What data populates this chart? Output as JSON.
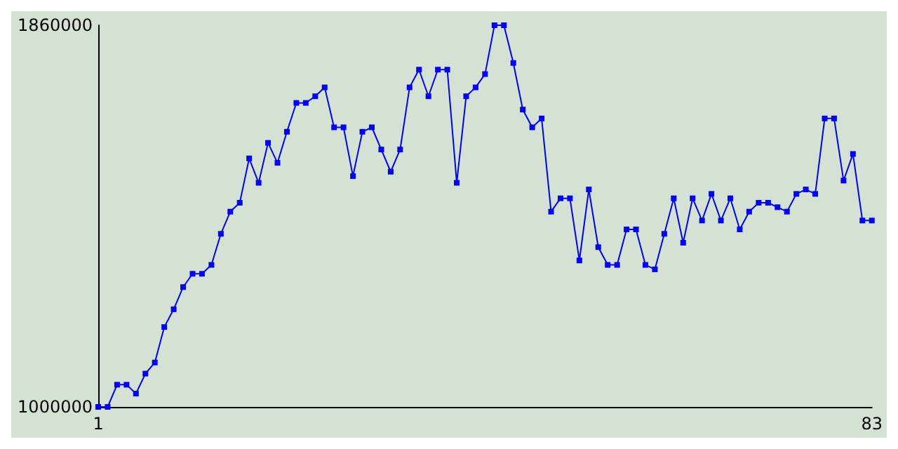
{
  "chart_data": {
    "type": "line",
    "x": [
      1,
      2,
      3,
      4,
      5,
      6,
      7,
      8,
      9,
      10,
      11,
      12,
      13,
      14,
      15,
      16,
      17,
      18,
      19,
      20,
      21,
      22,
      23,
      24,
      25,
      26,
      27,
      28,
      29,
      30,
      31,
      32,
      33,
      34,
      35,
      36,
      37,
      38,
      39,
      40,
      41,
      42,
      43,
      44,
      45,
      46,
      47,
      48,
      49,
      50,
      51,
      52,
      53,
      54,
      55,
      56,
      57,
      58,
      59,
      60,
      61,
      62,
      63,
      64,
      65,
      66,
      67,
      68,
      69,
      70,
      71,
      72,
      73,
      74,
      75,
      76,
      77,
      78,
      79,
      80,
      81,
      82,
      83
    ],
    "series": [
      {
        "color": "#0000ff",
        "values": [
          1000000,
          1000000,
          1050000,
          1050000,
          1030000,
          1075000,
          1100000,
          1180000,
          1220000,
          1270000,
          1300000,
          1300000,
          1320000,
          1390000,
          1440000,
          1460000,
          1560000,
          1505000,
          1595000,
          1550000,
          1620000,
          1685000,
          1685000,
          1700000,
          1720000,
          1630000,
          1630000,
          1520000,
          1620000,
          1630000,
          1580000,
          1530000,
          1580000,
          1720000,
          1760000,
          1700000,
          1760000,
          1760000,
          1505000,
          1700000,
          1720000,
          1750000,
          1860000,
          1860000,
          1775000,
          1670000,
          1630000,
          1650000,
          1440000,
          1470000,
          1470000,
          1330000,
          1490000,
          1360000,
          1320000,
          1320000,
          1400000,
          1400000,
          1320000,
          1310000,
          1390000,
          1470000,
          1370000,
          1470000,
          1420000,
          1480000,
          1420000,
          1470000,
          1400000,
          1440000,
          1460000,
          1460000,
          1450000,
          1440000,
          1480000,
          1490000,
          1480000,
          1650000,
          1650000,
          1510000,
          1570000,
          1420000,
          1420000
        ]
      }
    ],
    "xlim": [
      1,
      83
    ],
    "xticks": [
      1,
      83
    ],
    "ylim": [
      1000000,
      1860000
    ],
    "yticks": [
      1000000,
      1860000
    ],
    "grid": false,
    "marker": "square",
    "line_style": "solid"
  }
}
